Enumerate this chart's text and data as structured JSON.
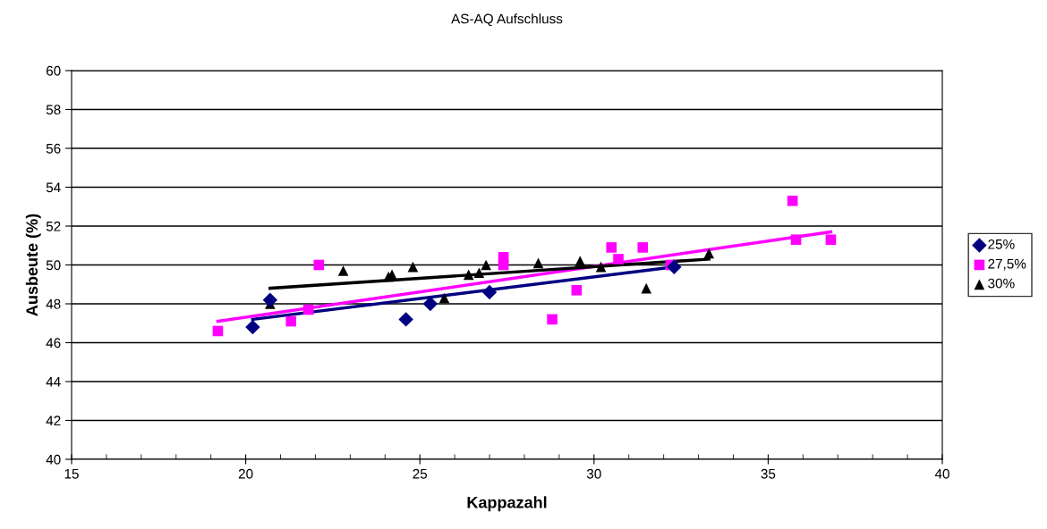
{
  "chart_data": {
    "type": "scatter",
    "title": "AS-AQ Aufschluss",
    "xlabel": "Kappazahl",
    "ylabel": "Ausbeute (%)",
    "xlim": [
      15,
      40
    ],
    "xticks": [
      15,
      20,
      25,
      30,
      35,
      40
    ],
    "ylim": [
      40,
      60
    ],
    "yticks": [
      40,
      42,
      44,
      46,
      48,
      50,
      52,
      54,
      56,
      58,
      60
    ],
    "grid": "y",
    "legend": "right",
    "series": [
      {
        "name": "25%",
        "color": "#000080",
        "marker": "diamond",
        "x": [
          20.2,
          20.7,
          24.6,
          25.3,
          27.0,
          32.3
        ],
        "values": [
          46.8,
          48.2,
          47.2,
          48.0,
          48.6,
          49.9
        ]
      },
      {
        "name": "27,5%",
        "color": "#ff00ff",
        "marker": "square",
        "x": [
          19.2,
          21.3,
          21.8,
          22.1,
          27.4,
          27.4,
          28.8,
          29.5,
          30.5,
          30.7,
          31.4,
          32.2,
          35.7,
          35.8,
          36.8
        ],
        "values": [
          46.6,
          47.1,
          47.7,
          50.0,
          50.4,
          50.0,
          47.2,
          48.7,
          50.9,
          50.3,
          50.9,
          50.0,
          53.3,
          51.3,
          51.3
        ]
      },
      {
        "name": "30%",
        "color": "#000000",
        "marker": "triangle",
        "x": [
          20.7,
          22.8,
          24.1,
          24.2,
          24.8,
          25.7,
          26.4,
          26.7,
          26.9,
          28.4,
          29.6,
          30.2,
          31.5,
          33.3
        ],
        "values": [
          48.0,
          49.7,
          49.4,
          49.5,
          49.9,
          48.3,
          49.5,
          49.6,
          50.0,
          50.1,
          50.2,
          49.9,
          48.8,
          50.6
        ]
      },
      {
        "type": "line",
        "color": "#000080",
        "x": [
          20.2,
          32.3
        ],
        "values": [
          47.2,
          49.9
        ]
      },
      {
        "type": "line",
        "color": "#ff00ff",
        "x": [
          19.2,
          36.8
        ],
        "values": [
          47.1,
          51.7
        ]
      },
      {
        "type": "line",
        "color": "#000000",
        "x": [
          20.7,
          33.3
        ],
        "values": [
          48.8,
          50.3
        ]
      }
    ]
  }
}
